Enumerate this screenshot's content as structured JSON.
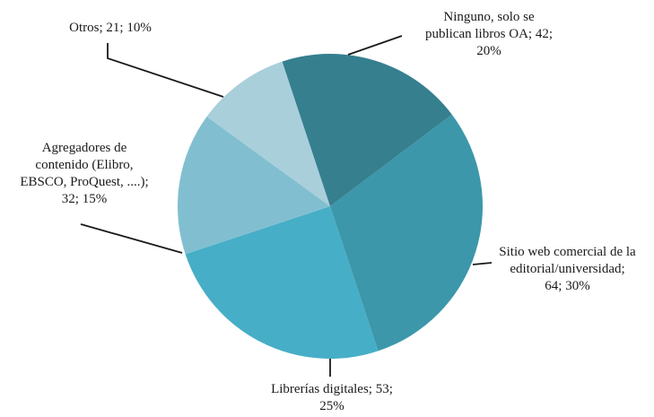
{
  "chart_data": {
    "type": "pie",
    "title": "",
    "start_angle_deg": 53,
    "slices": [
      {
        "label": "Sitio web comercial de la editorial/universidad",
        "value": 64,
        "percent": 30,
        "color": "#3c97aa",
        "text": "Sitio web comercial de la\neditorial/universidad;\n64; 30%"
      },
      {
        "label": "Librerías digitales",
        "value": 53,
        "percent": 25,
        "color": "#46aec6",
        "text": "Librerías digitales; 53;\n25%"
      },
      {
        "label": "Agregadores de contenido (Elibro, EBSCO, ProQuest, ....)",
        "value": 32,
        "percent": 15,
        "color": "#81bfd0",
        "text": "Agregadores de\ncontenido (Elibro,\nEBSCO, ProQuest, ....);\n32; 15%"
      },
      {
        "label": "Otros",
        "value": 21,
        "percent": 10,
        "color": "#a9cfdb",
        "text": "Otros; 21; 10%"
      },
      {
        "label": "Ninguno, solo se publican libros OA",
        "value": 42,
        "percent": 20,
        "color": "#367f8f",
        "text": "Ninguno, solo se\npublican libros OA; 42;\n20%"
      }
    ]
  }
}
